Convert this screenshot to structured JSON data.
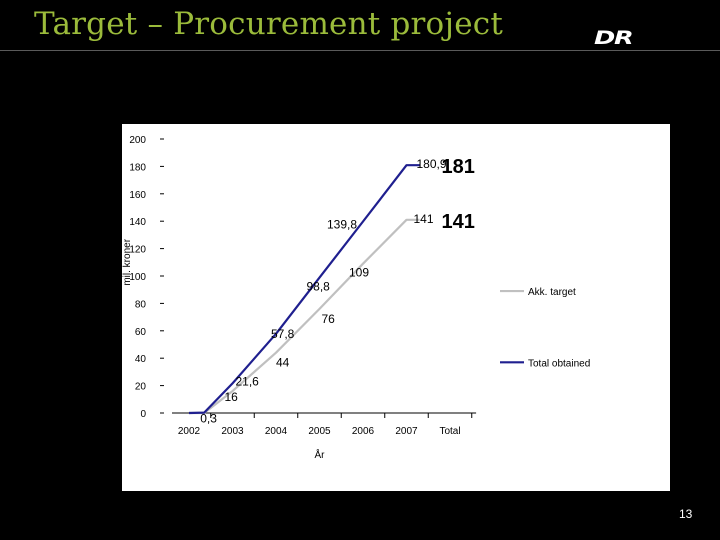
{
  "slide": {
    "title": "Target – Procurement project",
    "logo_text": "DR",
    "page_number": "13"
  },
  "colors": {
    "title": "#9bbb3b",
    "background": "#000000",
    "series_target": "#c0c0c0",
    "series_obtained": "#1f1f8f"
  },
  "chart_data": {
    "type": "line",
    "xlabel": "År",
    "ylabel": "mil. kroner",
    "categories": [
      "2002",
      "2003",
      "2004",
      "2005",
      "2006",
      "2007",
      "Total"
    ],
    "ylim": [
      0,
      200
    ],
    "yticks": [
      0,
      20,
      40,
      60,
      80,
      100,
      120,
      140,
      160,
      180,
      200
    ],
    "grid": false,
    "legend_position": "right",
    "series": [
      {
        "name": "Akk. target",
        "color": "#c0c0c0",
        "x": [
          2002,
          2002.35,
          2003,
          2004,
          2005,
          2006,
          2007,
          2007.3
        ],
        "values": [
          0,
          0,
          16,
          44,
          76,
          109,
          141,
          141
        ],
        "labels": [
          "",
          "",
          "16",
          "44",
          "76",
          "109",
          "141",
          ""
        ]
      },
      {
        "name": "Total obtained",
        "color": "#1f1f8f",
        "x": [
          2002,
          2002.35,
          2003,
          2004,
          2005,
          2006,
          2007,
          2007.3
        ],
        "values": [
          0,
          0.3,
          21.6,
          57.8,
          98.8,
          139.8,
          180.9,
          180.9
        ],
        "labels": [
          "",
          "0,3",
          "21,6",
          "57,8",
          "98,8",
          "139,8",
          "180,9",
          ""
        ]
      }
    ],
    "annotations": [
      {
        "text": "181",
        "series": "Total obtained",
        "value": 181
      },
      {
        "text": "141",
        "series": "Akk. target",
        "value": 141
      }
    ]
  }
}
